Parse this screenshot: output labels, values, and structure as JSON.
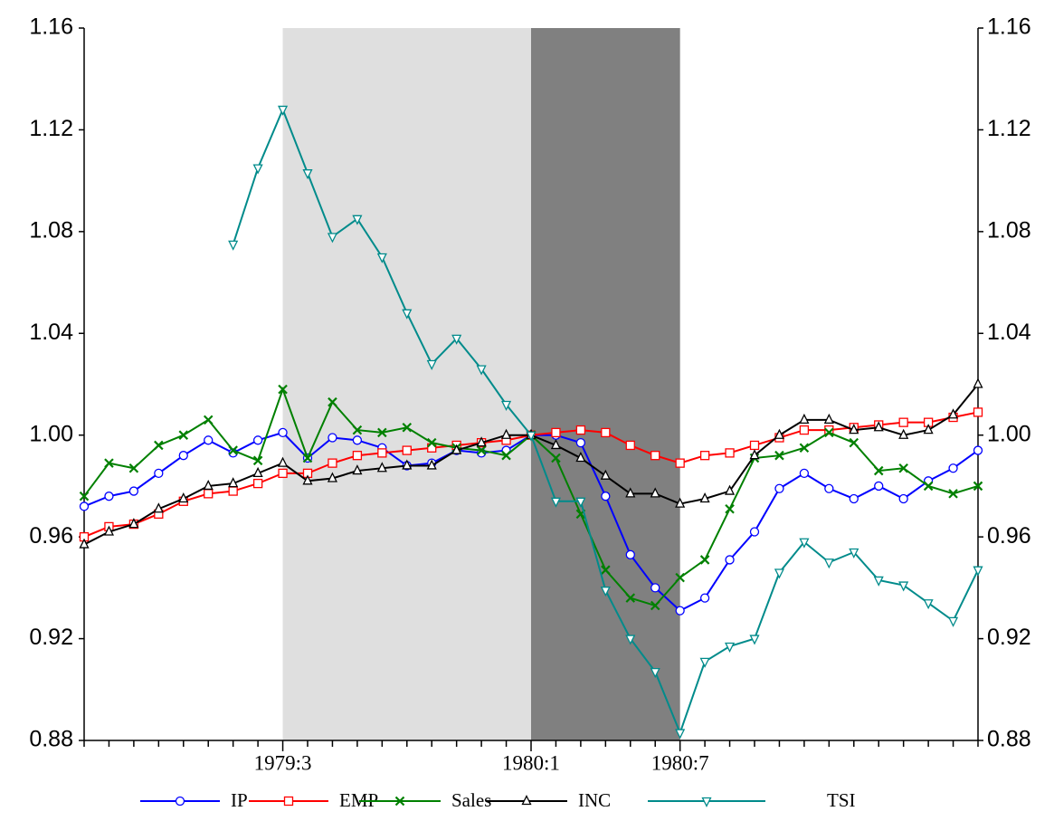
{
  "chart_data": {
    "type": "line",
    "categories": [
      null,
      null,
      null,
      null,
      null,
      null,
      null,
      null,
      "1979:3",
      null,
      null,
      null,
      null,
      null,
      null,
      null,
      null,
      null,
      "1980:1",
      null,
      null,
      null,
      null,
      null,
      "1980:7",
      null,
      null,
      null,
      null,
      null,
      null,
      null,
      null,
      null,
      null,
      null,
      null
    ],
    "ylim": [
      0.88,
      1.16
    ],
    "yticks": [
      {
        "value": 0.88,
        "label": "0.88"
      },
      {
        "value": 0.92,
        "label": "0.92"
      },
      {
        "value": 0.96,
        "label": "0.96"
      },
      {
        "value": 1.0,
        "label": "1.00"
      },
      {
        "value": 1.04,
        "label": "1.04"
      },
      {
        "value": 1.08,
        "label": "1.08"
      },
      {
        "value": 1.12,
        "label": "1.12"
      },
      {
        "value": 1.16,
        "label": "1.16"
      }
    ],
    "y2lim": [
      0.88,
      1.16
    ],
    "y2ticks": [
      {
        "value": 0.88,
        "label": "0.88"
      },
      {
        "value": 0.92,
        "label": "0.92"
      },
      {
        "value": 0.96,
        "label": "0.96"
      },
      {
        "value": 1.0,
        "label": "1.00"
      },
      {
        "value": 1.04,
        "label": "1.04"
      },
      {
        "value": 1.08,
        "label": "1.08"
      },
      {
        "value": 1.12,
        "label": "1.12"
      },
      {
        "value": 1.16,
        "label": "1.16"
      }
    ],
    "shaded_regions": [
      {
        "from": "1979:3",
        "to": "1980:1",
        "color": "#dfdfdf"
      },
      {
        "from": "1980:1",
        "to": "1980:7",
        "color": "#808080"
      }
    ],
    "legend": "bottom",
    "series": [
      {
        "name": "IP",
        "color": "#0000ff",
        "marker": "circle",
        "values": [
          0.972,
          0.976,
          0.978,
          0.985,
          0.992,
          0.998,
          0.993,
          0.998,
          1.001,
          0.991,
          0.999,
          0.998,
          0.995,
          0.988,
          0.989,
          0.994,
          0.993,
          0.994,
          1.0,
          1.0,
          0.997,
          0.976,
          0.953,
          0.94,
          0.931,
          0.936,
          0.951,
          0.962,
          0.979,
          0.985,
          0.979,
          0.975,
          0.98,
          0.975,
          0.982,
          0.987,
          0.994
        ]
      },
      {
        "name": "EMP",
        "color": "#ff0000",
        "marker": "square",
        "values": [
          0.96,
          0.964,
          0.965,
          0.969,
          0.974,
          0.977,
          0.978,
          0.981,
          0.985,
          0.985,
          0.989,
          0.992,
          0.993,
          0.994,
          0.995,
          0.996,
          0.997,
          0.998,
          1.0,
          1.001,
          1.002,
          1.001,
          0.996,
          0.992,
          0.989,
          0.992,
          0.993,
          0.996,
          0.999,
          1.002,
          1.002,
          1.003,
          1.004,
          1.005,
          1.005,
          1.007,
          1.009
        ]
      },
      {
        "name": "Sales",
        "color": "#008000",
        "marker": "cross",
        "values": [
          0.976,
          0.989,
          0.987,
          0.996,
          1.0,
          1.006,
          0.994,
          0.99,
          1.018,
          0.991,
          1.013,
          1.002,
          1.001,
          1.003,
          0.997,
          0.995,
          0.994,
          0.992,
          1.0,
          0.991,
          0.969,
          0.947,
          0.936,
          0.933,
          0.944,
          0.951,
          0.971,
          0.991,
          0.992,
          0.995,
          1.001,
          0.997,
          0.986,
          0.987,
          0.98,
          0.977,
          0.98
        ]
      },
      {
        "name": "INC",
        "color": "#000000",
        "marker": "triangle-up",
        "values": [
          0.957,
          0.962,
          0.965,
          0.971,
          0.975,
          0.98,
          0.981,
          0.985,
          0.989,
          0.982,
          0.983,
          0.986,
          0.987,
          0.988,
          0.988,
          0.994,
          0.997,
          1.0,
          1.0,
          0.996,
          0.991,
          0.984,
          0.977,
          0.977,
          0.973,
          0.975,
          0.978,
          0.992,
          1.0,
          1.006,
          1.006,
          1.002,
          1.003,
          1.0,
          1.002,
          1.008,
          1.02
        ]
      },
      {
        "name": "TSI",
        "color": "#008b8b",
        "marker": "triangle-down",
        "values": [
          null,
          null,
          null,
          null,
          null,
          null,
          1.075,
          1.105,
          1.128,
          1.103,
          1.078,
          1.085,
          1.07,
          1.048,
          1.028,
          1.038,
          1.026,
          1.012,
          1.0,
          0.974,
          0.974,
          0.939,
          0.92,
          0.907,
          0.883,
          0.911,
          0.917,
          0.92,
          0.946,
          0.958,
          0.95,
          0.954,
          0.943,
          0.941,
          0.934,
          0.927,
          0.947
        ]
      }
    ]
  }
}
